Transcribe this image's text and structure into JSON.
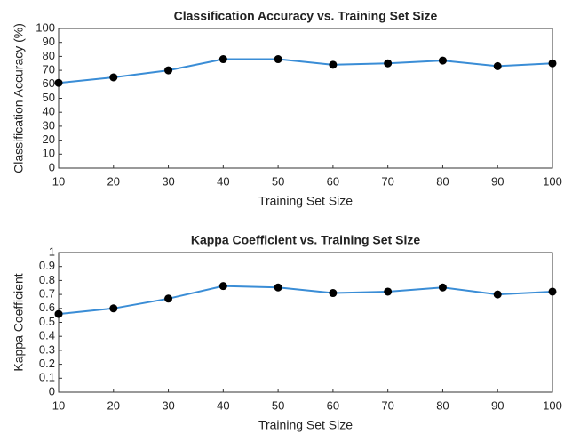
{
  "chart_data": [
    {
      "type": "line",
      "title": "Classification Accuracy vs. Training Set Size",
      "xlabel": "Training Set Size",
      "ylabel": "Classification Accuracy (%)",
      "x": [
        10,
        20,
        30,
        40,
        50,
        60,
        70,
        80,
        90,
        100
      ],
      "values": [
        61,
        65,
        70,
        78,
        78,
        74,
        75,
        77,
        73,
        75
      ],
      "color": "#3a8dd6",
      "marker_color": "#000000",
      "xlim": [
        10,
        100
      ],
      "xticks": [
        10,
        20,
        30,
        40,
        50,
        60,
        70,
        80,
        90,
        100
      ],
      "ylim": [
        0,
        100
      ],
      "yticks": [
        0,
        10,
        20,
        30,
        40,
        50,
        60,
        70,
        80,
        90,
        100
      ]
    },
    {
      "type": "line",
      "title": "Kappa Coefficient vs. Training Set Size",
      "xlabel": "Training Set Size",
      "ylabel": "Kappa Coefficient",
      "x": [
        10,
        20,
        30,
        40,
        50,
        60,
        70,
        80,
        90,
        100
      ],
      "values": [
        0.56,
        0.6,
        0.67,
        0.76,
        0.75,
        0.71,
        0.72,
        0.75,
        0.7,
        0.72
      ],
      "color": "#3a8dd6",
      "marker_color": "#000000",
      "xlim": [
        10,
        100
      ],
      "xticks": [
        10,
        20,
        30,
        40,
        50,
        60,
        70,
        80,
        90,
        100
      ],
      "ylim": [
        0,
        1
      ],
      "yticks": [
        0,
        0.1,
        0.2,
        0.3,
        0.4,
        0.5,
        0.6,
        0.7,
        0.8,
        0.9,
        1
      ]
    }
  ]
}
